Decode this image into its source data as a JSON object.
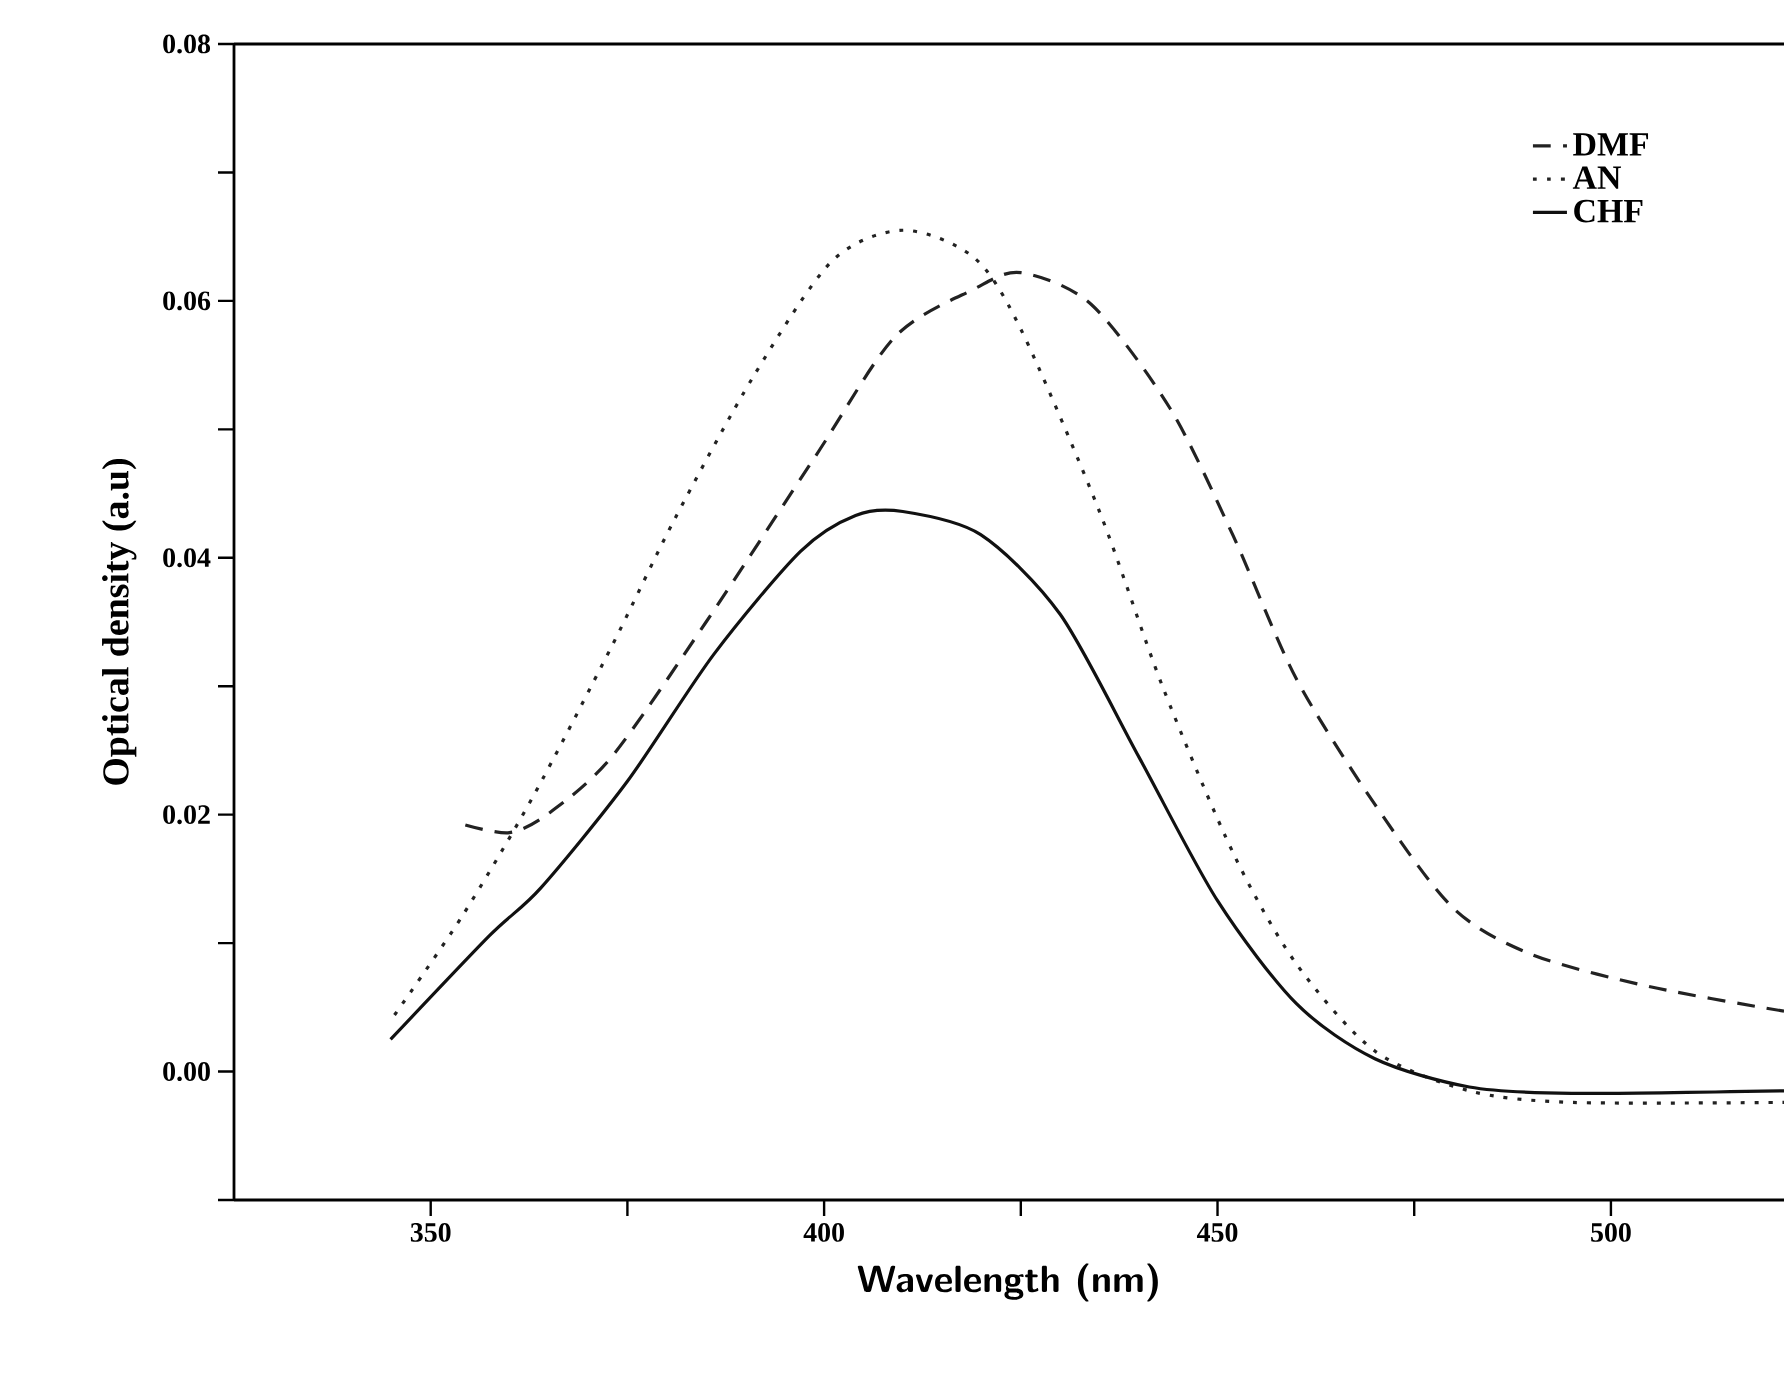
{
  "chart_data": {
    "type": "line",
    "xlabel": "Wavelength (nm)",
    "ylabel": "Optical density (a.u)",
    "xlim": [
      325,
      522
    ],
    "ylim": [
      -0.01,
      0.08
    ],
    "xticks": [
      350,
      400,
      450,
      500,
      {
        "value": 375,
        "label": null
      },
      {
        "value": 425,
        "label": null
      },
      {
        "value": 475,
        "label": null
      }
    ],
    "yticks": [
      {
        "value": 0,
        "label": "0.00"
      },
      {
        "value": 0.02,
        "label": "0.02"
      },
      {
        "value": 0.04,
        "label": "0.04"
      },
      {
        "value": 0.06,
        "label": "0.06"
      },
      {
        "value": 0.08,
        "label": "0.08"
      },
      {
        "value": -0.01,
        "label": null
      },
      {
        "value": 0.01,
        "label": null
      },
      {
        "value": 0.03,
        "label": null
      },
      {
        "value": 0.05,
        "label": null
      },
      {
        "value": 0.07,
        "label": null
      }
    ],
    "grid": false,
    "legend": "top right",
    "marker": "none",
    "series": [
      {
        "name": "DMF",
        "color": "#222222",
        "line_style": "dashed",
        "x": [
          354.4,
          360,
          365,
          373,
          385,
          399,
          409,
          419,
          425,
          434,
          444,
          452,
          460,
          470,
          480,
          490,
          505,
          522
        ],
        "values": [
          0.0192,
          0.0186,
          0.0201,
          0.0245,
          0.035,
          0.048,
          0.0572,
          0.0609,
          0.0622,
          0.0597,
          0.0516,
          0.0417,
          0.0306,
          0.0208,
          0.0127,
          0.0091,
          0.0066,
          0.0047
        ]
      },
      {
        "name": "AN",
        "color": "#222222",
        "line_style": "dotted",
        "x": [
          345.4,
          354,
          363,
          373,
          381,
          391,
          401,
          410,
          419,
          425,
          435,
          443,
          452,
          460,
          470,
          482,
          495,
          522
        ],
        "values": [
          0.0044,
          0.0121,
          0.0214,
          0.0331,
          0.043,
          0.0541,
          0.0631,
          0.0655,
          0.0634,
          0.0578,
          0.0436,
          0.03,
          0.017,
          0.0084,
          0.0016,
          -0.0015,
          -0.0024,
          -0.0024
        ]
      },
      {
        "name": "CHF",
        "color": "#111111",
        "line_style": "solid",
        "x": [
          344.9,
          357.5,
          364,
          375,
          386,
          397,
          404,
          410,
          419.9,
          430,
          440,
          450,
          460,
          470,
          482,
          495,
          522
        ],
        "values": [
          0.0025,
          0.0106,
          0.0143,
          0.0226,
          0.0325,
          0.0405,
          0.0433,
          0.0436,
          0.0418,
          0.0356,
          0.0245,
          0.0133,
          0.0053,
          0.001,
          -0.0012,
          -0.0017,
          -0.0015
        ]
      }
    ]
  }
}
